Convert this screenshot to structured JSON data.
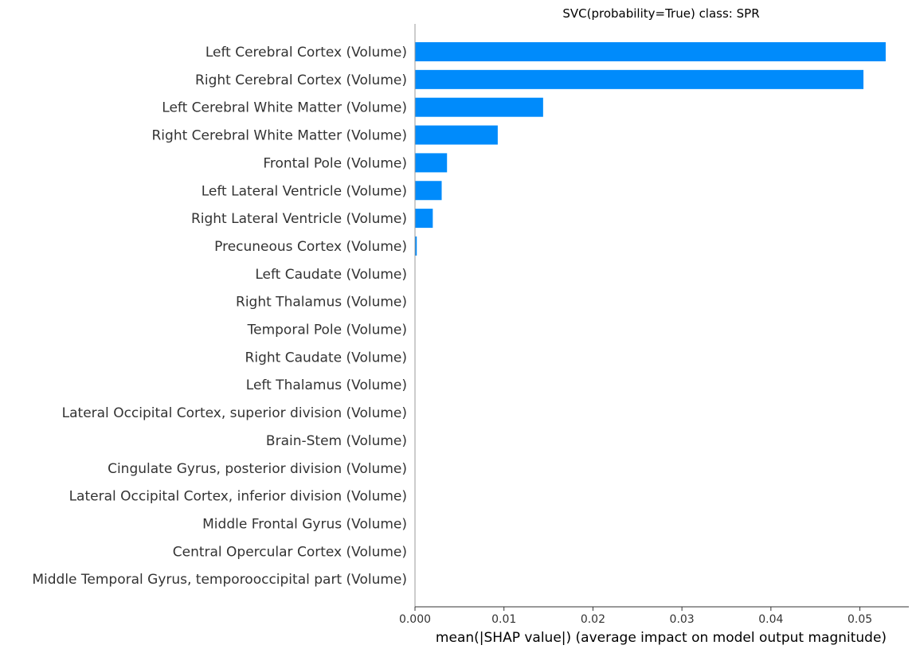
{
  "chart_data": {
    "type": "bar",
    "orientation": "horizontal",
    "title": "SVC(probability=True) class: SPR",
    "xlabel": "mean(|SHAP value|) (average impact on model output magnitude)",
    "ylabel": "",
    "xlim": [
      0,
      0.0555
    ],
    "xticks": [
      "0.000",
      "0.01",
      "0.02",
      "0.03",
      "0.04",
      "0.05"
    ],
    "xtick_values": [
      0,
      0.01,
      0.02,
      0.03,
      0.04,
      0.05
    ],
    "grid": false,
    "bar_color": "#008bfb",
    "categories": [
      "Left Cerebral Cortex  (Volume)",
      "Right Cerebral Cortex (Volume)",
      "Left Cerebral White Matter (Volume)",
      "Right Cerebral White Matter (Volume)",
      "Frontal Pole (Volume)",
      "Left Lateral Ventricle (Volume)",
      "Right Lateral Ventricle (Volume)",
      "Precuneous Cortex (Volume)",
      "Left Caudate (Volume)",
      "Right Thalamus (Volume)",
      "Temporal Pole (Volume)",
      "Right Caudate (Volume)",
      "Left Thalamus (Volume)",
      "Lateral Occipital Cortex, superior division (Volume)",
      "Brain-Stem (Volume)",
      "Cingulate Gyrus, posterior division (Volume)",
      "Lateral Occipital Cortex, inferior division (Volume)",
      "Middle Frontal Gyrus (Volume)",
      "Central Opercular Cortex (Volume)",
      "Middle Temporal Gyrus, temporooccipital part (Volume)"
    ],
    "values": [
      0.0529,
      0.0504,
      0.0144,
      0.0093,
      0.0036,
      0.003,
      0.002,
      0.0002,
      0,
      0,
      0,
      0,
      0,
      0,
      0,
      0,
      0,
      0,
      0,
      0
    ]
  }
}
